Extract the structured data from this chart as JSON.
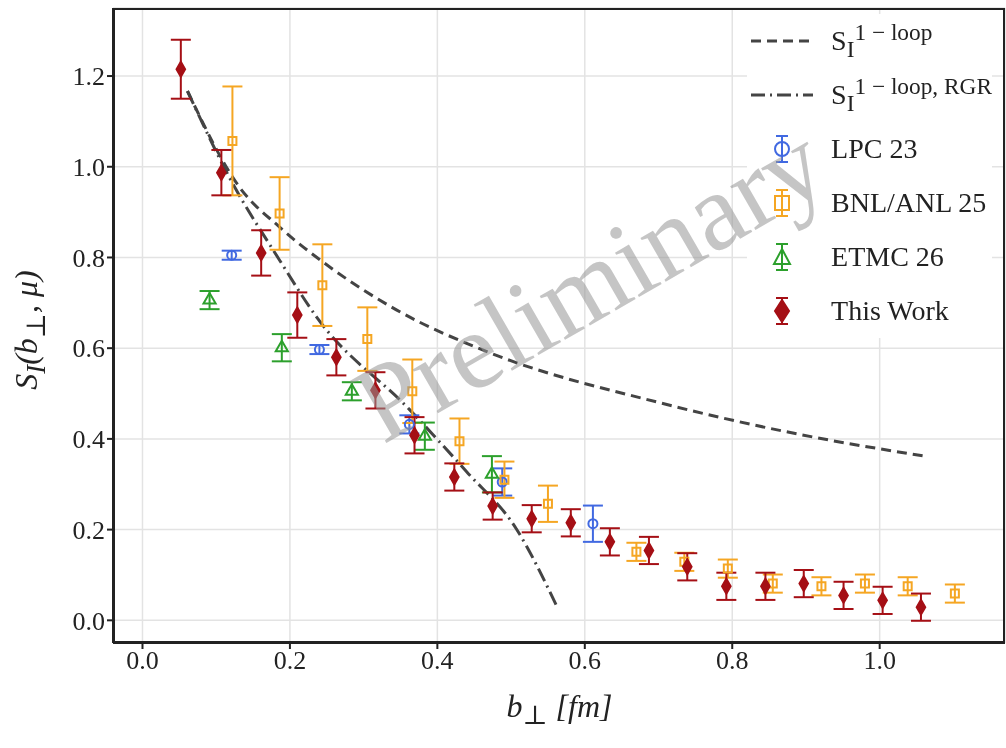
{
  "chart_data": {
    "type": "scatter",
    "xlabel": "b$_{⊥}$ [fm]",
    "ylabel": "S$_{I}$(b$_{⊥}$, μ)",
    "xlim": [
      -0.04,
      1.17
    ],
    "ylim": [
      -0.05,
      1.35
    ],
    "xticks": [
      {
        "value": 0,
        "label": "0.0"
      },
      0.2,
      0.4,
      0.6,
      0.8,
      {
        "value": 1,
        "label": "1.0"
      }
    ],
    "yticks": [
      {
        "value": 0,
        "label": "0.0"
      },
      0.2,
      0.4,
      0.6,
      0.8,
      {
        "value": 1,
        "label": "1.0"
      },
      1.2
    ],
    "grid": true,
    "legend": "top right",
    "annotations": [
      "Preliminary"
    ],
    "series": [
      {
        "name": "S$_{I}$$^{1 − loop}$",
        "type": "line",
        "line_style": "dashed",
        "color": "#444444",
        "x": [
          0.061,
          0.132,
          0.186,
          0.254,
          0.345,
          0.471,
          0.701,
          0.891,
          1.061
        ],
        "values": [
          1.167,
          0.954,
          0.867,
          0.779,
          0.684,
          0.59,
          0.48,
          0.41,
          0.362
        ]
      },
      {
        "name": "S$_{I}$$^{1 − loop, RGR}$",
        "type": "line",
        "line_style": "dashdot",
        "color": "#444444",
        "x": [
          0.061,
          0.118,
          0.186,
          0.236,
          0.362,
          0.44,
          0.507,
          0.562
        ],
        "values": [
          1.167,
          0.976,
          0.794,
          0.669,
          0.465,
          0.327,
          0.202,
          0.031
        ]
      },
      {
        "name": "LPC 23",
        "marker": "circle",
        "color": "#4169e1",
        "x": [
          0.121,
          0.24,
          0.362,
          0.488,
          0.611
        ],
        "values": [
          0.805,
          0.597,
          0.432,
          0.305,
          0.213
        ],
        "errors": [
          0.01,
          0.01,
          0.02,
          0.03,
          0.04
        ]
      },
      {
        "name": "BNL/ANL 25",
        "marker": "square",
        "color": "#f5a623",
        "x": [
          0.122,
          0.186,
          0.244,
          0.305,
          0.366,
          0.43,
          0.491,
          0.55,
          0.67,
          0.735,
          0.794,
          0.855,
          0.921,
          0.98,
          1.038,
          1.102
        ],
        "values": [
          1.057,
          0.897,
          0.739,
          0.62,
          0.505,
          0.395,
          0.31,
          0.257,
          0.151,
          0.129,
          0.114,
          0.081,
          0.075,
          0.081,
          0.075,
          0.059
        ],
        "errors": [
          0.12,
          0.08,
          0.09,
          0.07,
          0.07,
          0.05,
          0.04,
          0.04,
          0.02,
          0.02,
          0.02,
          0.02,
          0.02,
          0.02,
          0.02,
          0.02
        ]
      },
      {
        "name": "ETMC 26",
        "marker": "triangle",
        "color": "#2ca02c",
        "x": [
          0.091,
          0.189,
          0.284,
          0.383,
          0.474
        ],
        "values": [
          0.706,
          0.601,
          0.505,
          0.406,
          0.322
        ],
        "errors": [
          0.02,
          0.03,
          0.02,
          0.03,
          0.04
        ]
      },
      {
        "name": "This Work",
        "marker": "diamond",
        "color": "#a50f15",
        "x": [
          0.052,
          0.107,
          0.161,
          0.21,
          0.263,
          0.316,
          0.369,
          0.423,
          0.475,
          0.528,
          0.581,
          0.634,
          0.687,
          0.739,
          0.792,
          0.845,
          0.897,
          0.951,
          1.004,
          1.056
        ],
        "values": [
          1.215,
          0.987,
          0.81,
          0.673,
          0.58,
          0.507,
          0.408,
          0.316,
          0.252,
          0.224,
          0.215,
          0.173,
          0.154,
          0.118,
          0.075,
          0.075,
          0.081,
          0.055,
          0.044,
          0.029
        ],
        "errors": [
          0.065,
          0.05,
          0.05,
          0.05,
          0.04,
          0.04,
          0.04,
          0.03,
          0.03,
          0.03,
          0.03,
          0.03,
          0.03,
          0.03,
          0.03,
          0.03,
          0.03,
          0.03,
          0.03,
          0.03
        ]
      }
    ]
  }
}
